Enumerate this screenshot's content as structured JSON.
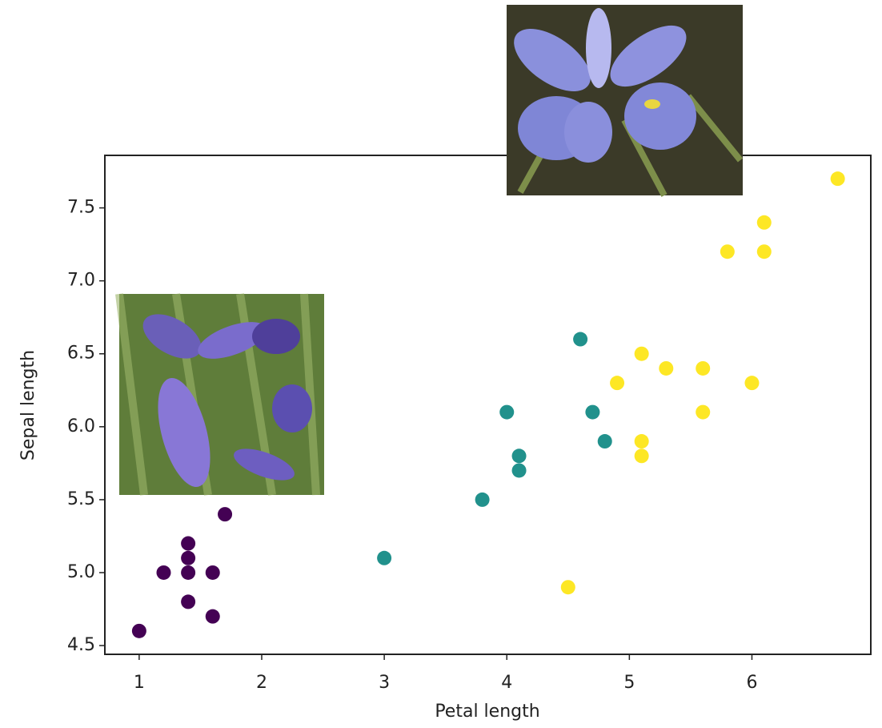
{
  "chart_data": {
    "type": "scatter",
    "xlabel": "Petal length",
    "ylabel": "Sepal length",
    "xlim": [
      0.72,
      6.97
    ],
    "ylim": [
      4.44,
      7.86
    ],
    "xticks": [
      1,
      2,
      3,
      4,
      5,
      6
    ],
    "yticks": [
      4.5,
      {
        "value": 5,
        "label": "5.0"
      },
      5.5,
      {
        "value": 6,
        "label": "6.0"
      },
      6.5,
      {
        "value": 7,
        "label": "7.0"
      },
      7.5
    ],
    "grid": false,
    "series": [
      {
        "color": "#440154",
        "x": [
          1.0,
          1.2,
          1.4,
          1.4,
          1.4,
          1.4,
          1.6,
          1.6,
          1.7
        ],
        "values": [
          4.6,
          5.0,
          5.2,
          5.1,
          5.0,
          4.8,
          5.0,
          4.7,
          5.4
        ]
      },
      {
        "color": "#21918c",
        "x": [
          3.0,
          3.8,
          4.0,
          4.1,
          4.1,
          4.6,
          4.7,
          4.8
        ],
        "values": [
          5.1,
          5.5,
          6.1,
          5.8,
          5.7,
          6.6,
          6.1,
          5.9
        ]
      },
      {
        "color": "#fde725",
        "x": [
          4.5,
          4.9,
          5.1,
          5.1,
          5.1,
          5.3,
          5.6,
          5.6,
          5.8,
          6.0,
          6.1,
          6.1,
          6.7
        ],
        "values": [
          4.9,
          6.3,
          6.5,
          5.9,
          5.8,
          6.4,
          6.4,
          6.1,
          7.2,
          6.3,
          7.4,
          7.2,
          7.7
        ]
      }
    ]
  }
}
